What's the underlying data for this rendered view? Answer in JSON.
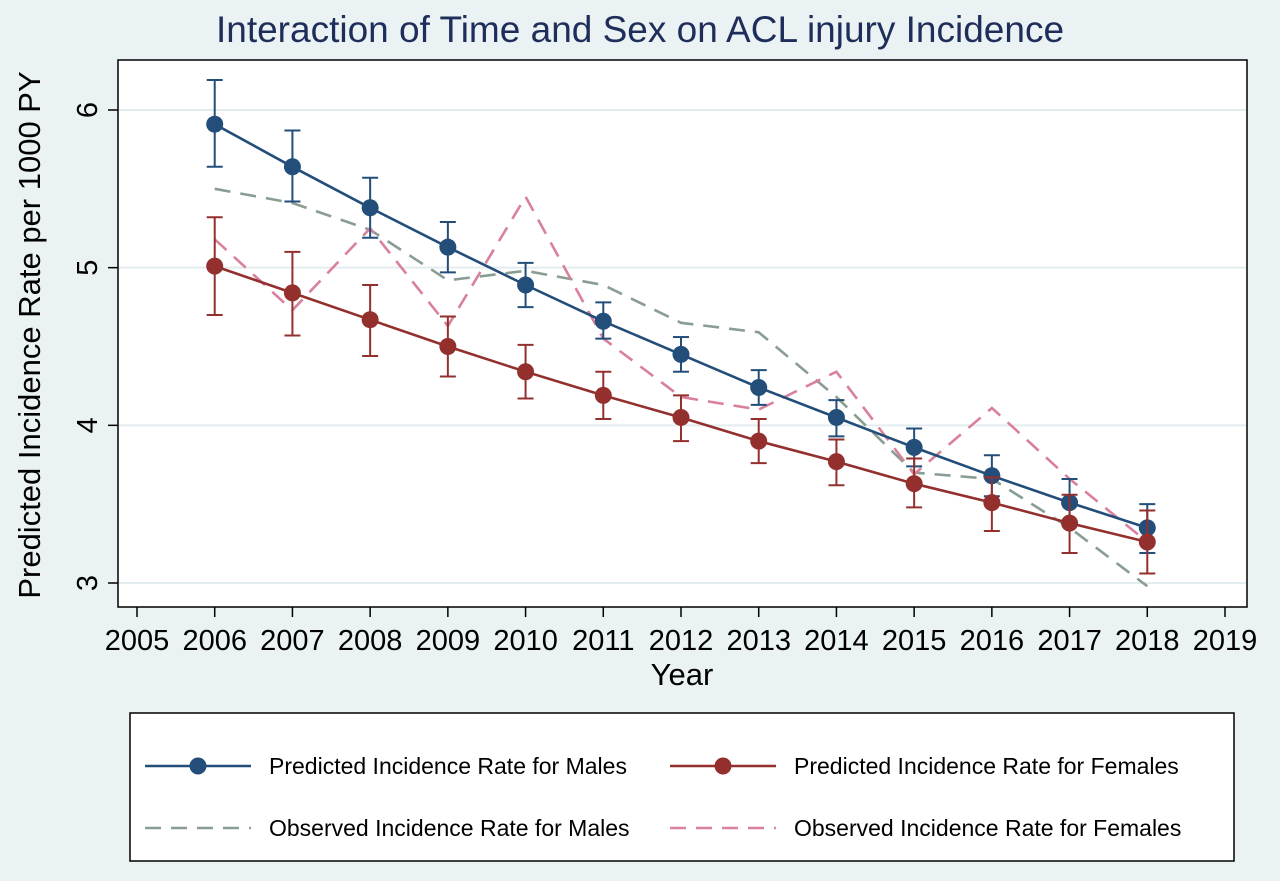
{
  "chart_data": {
    "type": "line",
    "title": "Interaction of Time and Sex on ACL injury Incidence",
    "xlabel": "Year",
    "ylabel": "Predicted Incidence Rate per 1000 PY",
    "xlim": [
      2005,
      2019
    ],
    "ylim": [
      2.83,
      6.33
    ],
    "xticks": [
      "2005",
      "2006",
      "2007",
      "2008",
      "2009",
      "2010",
      "2011",
      "2012",
      "2013",
      "2014",
      "2015",
      "2016",
      "2017",
      "2018",
      "2019"
    ],
    "yticks": [
      "3",
      "4",
      "5",
      "6"
    ],
    "x": [
      2006,
      2007,
      2008,
      2009,
      2010,
      2011,
      2012,
      2013,
      2014,
      2015,
      2016,
      2017,
      2018
    ],
    "grid": true,
    "legend_position": "bottom",
    "series": [
      {
        "name": "Predicted Incidence Rate for Males",
        "style": "solid-markers",
        "color": "#234e7a",
        "values": [
          5.91,
          5.64,
          5.38,
          5.13,
          4.89,
          4.66,
          4.45,
          4.24,
          4.05,
          3.86,
          3.68,
          3.51,
          3.35
        ],
        "ci_low": [
          5.64,
          5.42,
          5.19,
          4.97,
          4.75,
          4.55,
          4.34,
          4.13,
          3.93,
          3.74,
          3.55,
          3.37,
          3.19
        ],
        "ci_high": [
          6.19,
          5.87,
          5.57,
          5.29,
          5.03,
          4.78,
          4.56,
          4.35,
          4.16,
          3.98,
          3.81,
          3.66,
          3.5
        ]
      },
      {
        "name": "Predicted Incidence Rate for Females",
        "style": "solid-markers",
        "color": "#93302e",
        "values": [
          5.01,
          4.84,
          4.67,
          4.5,
          4.34,
          4.19,
          4.05,
          3.9,
          3.77,
          3.63,
          3.51,
          3.38,
          3.26
        ],
        "ci_low": [
          4.7,
          4.57,
          4.44,
          4.31,
          4.17,
          4.04,
          3.9,
          3.76,
          3.62,
          3.48,
          3.33,
          3.19,
          3.06
        ],
        "ci_high": [
          5.32,
          5.1,
          4.89,
          4.69,
          4.51,
          4.34,
          4.19,
          4.04,
          3.91,
          3.79,
          3.67,
          3.56,
          3.46
        ]
      },
      {
        "name": "Observed Incidence Rate for Males",
        "style": "dashed",
        "color": "#8a9d92",
        "values": [
          5.5,
          5.41,
          5.24,
          4.92,
          4.98,
          4.89,
          4.65,
          4.59,
          4.18,
          3.7,
          3.66,
          3.35,
          2.98
        ]
      },
      {
        "name": "Observed Incidence Rate for Females",
        "style": "dashed",
        "color": "#d9819b",
        "values": [
          5.18,
          4.73,
          5.25,
          4.63,
          5.45,
          4.55,
          4.18,
          4.1,
          4.34,
          3.69,
          4.11,
          3.66,
          3.26
        ]
      }
    ]
  }
}
